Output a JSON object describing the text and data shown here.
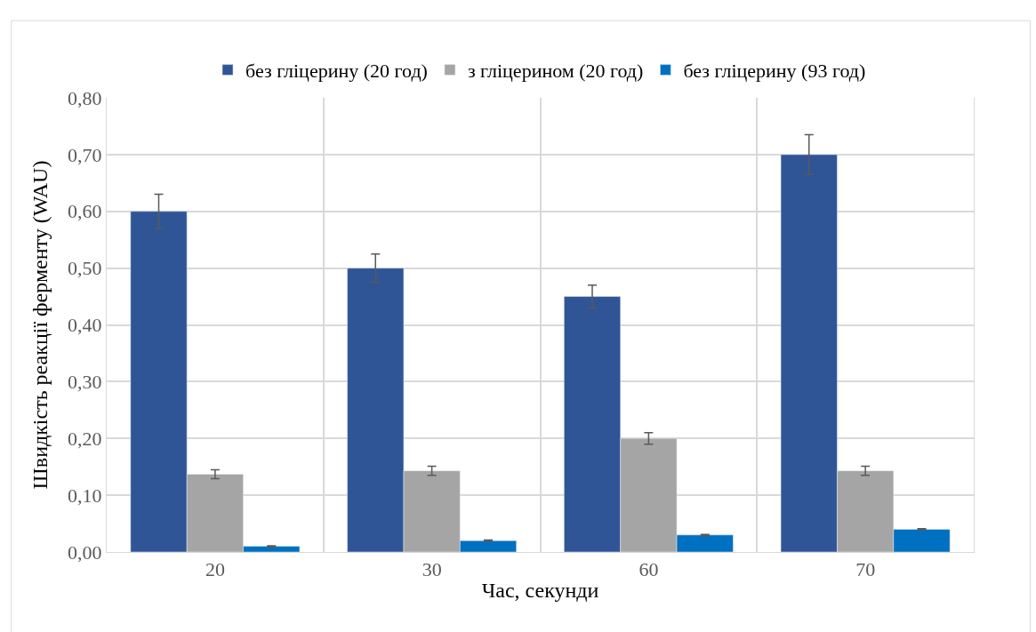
{
  "chart_data": {
    "type": "bar",
    "xlabel": "Час, секунди",
    "ylabel": "Швидкість реакції ферменту (WAU)",
    "categories": [
      "20",
      "30",
      "60",
      "70"
    ],
    "series": [
      {
        "name": "без гліцерину (20 год)",
        "color": "#2f5597",
        "values": [
          0.6,
          0.5,
          0.45,
          0.7
        ],
        "errors": [
          0.03,
          0.025,
          0.02,
          0.035
        ]
      },
      {
        "name": "з гліцерином (20 год)",
        "color": "#a5a5a5",
        "values": [
          0.137,
          0.143,
          0.2,
          0.143
        ],
        "errors": [
          0.008,
          0.008,
          0.01,
          0.008
        ]
      },
      {
        "name": "без гліцерину (93 год)",
        "color": "#0070c0",
        "values": [
          0.01,
          0.02,
          0.03,
          0.04
        ],
        "errors": [
          0.001,
          0.001,
          0.001,
          0.001
        ]
      }
    ],
    "ylim": [
      0,
      0.8
    ],
    "yticks": [
      {
        "value": 0,
        "label": "0,00"
      },
      {
        "value": 0.1,
        "label": "0,10"
      },
      {
        "value": 0.2,
        "label": "0,20"
      },
      {
        "value": 0.3,
        "label": "0,30"
      },
      {
        "value": 0.4,
        "label": "0,40"
      },
      {
        "value": 0.5,
        "label": "0,50"
      },
      {
        "value": 0.6,
        "label": "0,60"
      },
      {
        "value": 0.7,
        "label": "0,70"
      },
      {
        "value": 0.8,
        "label": "0,80"
      }
    ],
    "grid": true,
    "legend": "top"
  }
}
